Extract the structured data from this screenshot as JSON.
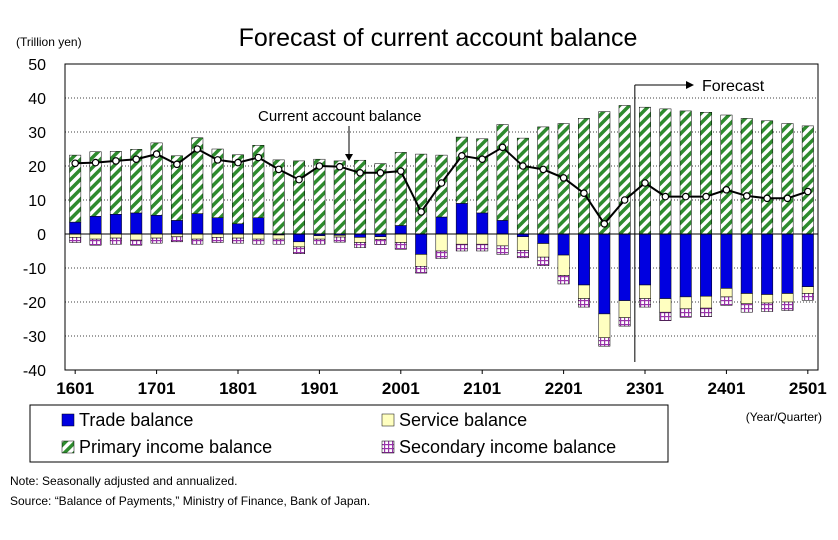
{
  "chart_data": {
    "type": "bar",
    "title": "Forecast of current account balance",
    "unit_label": "(Trillion yen)",
    "x_unit_label": "(Year/Quarter)",
    "ylim": [
      -40,
      50
    ],
    "yticks": [
      "50",
      "40",
      "30",
      "20",
      "10",
      "0",
      "-10",
      "-20",
      "-30",
      "-40"
    ],
    "ytick_values": [
      50,
      40,
      30,
      20,
      10,
      0,
      -10,
      -20,
      -30,
      -40
    ],
    "xtick_labels": [
      {
        "label": "1601",
        "index": 0
      },
      {
        "label": "1701",
        "index": 4
      },
      {
        "label": "1801",
        "index": 8
      },
      {
        "label": "1901",
        "index": 12
      },
      {
        "label": "2001",
        "index": 16
      },
      {
        "label": "2101",
        "index": 20
      },
      {
        "label": "2201",
        "index": 24
      },
      {
        "label": "2301",
        "index": 28
      },
      {
        "label": "2401",
        "index": 32
      },
      {
        "label": "2501",
        "index": 36
      }
    ],
    "categories": [
      "1601",
      "1602",
      "1603",
      "1604",
      "1701",
      "1702",
      "1703",
      "1704",
      "1801",
      "1802",
      "1803",
      "1804",
      "1901",
      "1902",
      "1903",
      "1904",
      "2001",
      "2002",
      "2003",
      "2004",
      "2101",
      "2102",
      "2103",
      "2104",
      "2201",
      "2202",
      "2203",
      "2204",
      "2301",
      "2302",
      "2303",
      "2304",
      "2401",
      "2402",
      "2403",
      "2404",
      "2501"
    ],
    "grid": "horizontal dotted",
    "forecast_start_index": 28,
    "annotations": {
      "current_account": "Current account balance",
      "forecast": "Forecast"
    },
    "series": [
      {
        "name": "Trade balance",
        "key": "trade",
        "color": "#0000e0",
        "values": [
          3.5,
          5.2,
          5.8,
          6.2,
          5.5,
          4.0,
          6.0,
          4.8,
          3.0,
          4.8,
          -0.3,
          -2.3,
          -0.5,
          -0.4,
          -1.0,
          -0.8,
          2.5,
          -6.0,
          5.0,
          9.0,
          6.2,
          4.0,
          -0.8,
          -2.8,
          -6.2,
          -15.0,
          -23.5,
          -19.6,
          -15.0,
          -19.0,
          -18.5,
          -18.3,
          -16.0,
          -17.5,
          -17.8,
          -17.5,
          -15.5
        ]
      },
      {
        "name": "Service balance",
        "key": "service",
        "color": "#ffffc0",
        "values": [
          -1.0,
          -1.5,
          -1.2,
          -1.8,
          -1.2,
          -0.8,
          -1.5,
          -1.0,
          -1.2,
          -1.5,
          -1.2,
          -1.5,
          -1.0,
          -0.5,
          -1.5,
          -0.8,
          -2.5,
          -3.5,
          -5.0,
          -3.0,
          -3.0,
          -3.5,
          -4.0,
          -4.0,
          -6.0,
          -4.0,
          -7.0,
          -5.0,
          -4.0,
          -4.0,
          -3.5,
          -3.5,
          -2.5,
          -3.0,
          -2.5,
          -2.5,
          -2.0
        ]
      },
      {
        "name": "Primary income balance",
        "key": "primary",
        "color": "#2e8b2e",
        "values": [
          19.7,
          19.0,
          18.5,
          18.7,
          21.3,
          19.0,
          22.3,
          20.2,
          20.3,
          21.3,
          21.8,
          21.5,
          22.0,
          21.5,
          21.7,
          20.7,
          21.5,
          23.5,
          18.2,
          19.5,
          21.8,
          28.2,
          28.2,
          31.5,
          32.5,
          34.0,
          36.0,
          37.8,
          37.3,
          36.8,
          36.2,
          35.8,
          35.0,
          34.0,
          33.3,
          32.5,
          31.8
        ]
      },
      {
        "name": "Secondary income balance",
        "key": "secondary",
        "color": "#9933aa",
        "values": [
          -1.5,
          -1.8,
          -1.8,
          -1.5,
          -1.5,
          -1.5,
          -1.5,
          -1.5,
          -1.5,
          -1.5,
          -1.5,
          -2.0,
          -1.5,
          -1.5,
          -1.5,
          -1.5,
          -2.0,
          -2.0,
          -2.2,
          -2.0,
          -2.0,
          -2.5,
          -2.2,
          -2.5,
          -2.5,
          -2.5,
          -2.5,
          -2.5,
          -2.5,
          -2.5,
          -2.5,
          -2.5,
          -2.5,
          -2.5,
          -2.5,
          -2.5,
          -2.0
        ]
      },
      {
        "name": "Current account balance",
        "key": "current",
        "color": "#000000",
        "values": [
          20.8,
          21.0,
          21.5,
          22.0,
          23.5,
          20.5,
          25.0,
          21.8,
          21.0,
          22.5,
          19.0,
          16.0,
          20.0,
          19.8,
          18.0,
          18.0,
          18.5,
          6.5,
          15.0,
          23.0,
          22.0,
          25.5,
          20.0,
          19.0,
          16.5,
          12.0,
          3.0,
          10.0,
          15.0,
          11.0,
          11.0,
          11.0,
          13.0,
          11.2,
          10.5,
          10.5,
          12.5
        ]
      }
    ],
    "legend": {
      "position": "bottom",
      "items": [
        "Trade balance",
        "Service balance",
        "Primary income balance",
        "Secondary income balance"
      ]
    }
  },
  "footnotes": {
    "note": "Note: Seasonally adjusted and annualized.",
    "source": "Source: “Balance of Payments,” Ministry of Finance, Bank of Japan."
  }
}
